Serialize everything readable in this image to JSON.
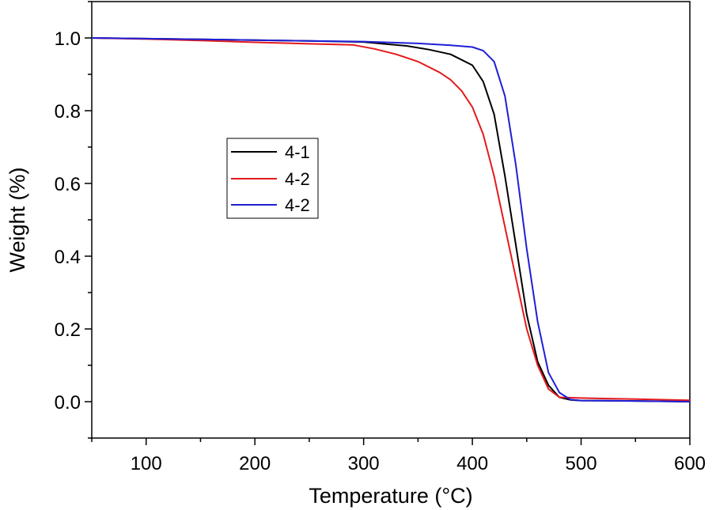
{
  "chart_data": {
    "type": "line",
    "title": "",
    "xlabel": "Temperature (°C)",
    "ylabel": "Weight (%)",
    "xlim": [
      50,
      600
    ],
    "ylim": [
      -0.1,
      1.1
    ],
    "x_ticks": [
      "100",
      "200",
      "300",
      "400",
      "500",
      "600"
    ],
    "y_ticks": [
      "0.0",
      "0.2",
      "0.4",
      "0.6",
      "0.8",
      "1.0"
    ],
    "grid": false,
    "legend_position": "center-left",
    "series": [
      {
        "name": "4-1",
        "color": "#000000",
        "points": [
          [
            50,
            1.0
          ],
          [
            100,
            0.998
          ],
          [
            150,
            0.996
          ],
          [
            200,
            0.994
          ],
          [
            250,
            0.992
          ],
          [
            300,
            0.989
          ],
          [
            340,
            0.978
          ],
          [
            360,
            0.968
          ],
          [
            380,
            0.955
          ],
          [
            400,
            0.925
          ],
          [
            410,
            0.88
          ],
          [
            420,
            0.79
          ],
          [
            430,
            0.62
          ],
          [
            440,
            0.43
          ],
          [
            450,
            0.24
          ],
          [
            460,
            0.11
          ],
          [
            470,
            0.045
          ],
          [
            480,
            0.012
          ],
          [
            490,
            0.005
          ],
          [
            500,
            0.003
          ],
          [
            550,
            0.002
          ],
          [
            600,
            0.0
          ]
        ]
      },
      {
        "name": "4-2",
        "color": "#e41a1c",
        "points": [
          [
            50,
            1.0
          ],
          [
            100,
            0.997
          ],
          [
            150,
            0.993
          ],
          [
            200,
            0.988
          ],
          [
            250,
            0.984
          ],
          [
            290,
            0.981
          ],
          [
            310,
            0.97
          ],
          [
            330,
            0.955
          ],
          [
            350,
            0.935
          ],
          [
            370,
            0.905
          ],
          [
            380,
            0.885
          ],
          [
            390,
            0.855
          ],
          [
            400,
            0.81
          ],
          [
            410,
            0.735
          ],
          [
            420,
            0.62
          ],
          [
            430,
            0.48
          ],
          [
            440,
            0.34
          ],
          [
            450,
            0.2
          ],
          [
            460,
            0.1
          ],
          [
            470,
            0.035
          ],
          [
            480,
            0.012
          ],
          [
            500,
            0.01
          ],
          [
            550,
            0.007
          ],
          [
            600,
            0.004
          ]
        ]
      },
      {
        "name": "4-2",
        "color": "#1f1fd6",
        "points": [
          [
            50,
            1.0
          ],
          [
            100,
            0.998
          ],
          [
            150,
            0.996
          ],
          [
            200,
            0.994
          ],
          [
            250,
            0.992
          ],
          [
            300,
            0.99
          ],
          [
            350,
            0.985
          ],
          [
            380,
            0.98
          ],
          [
            400,
            0.975
          ],
          [
            410,
            0.965
          ],
          [
            420,
            0.935
          ],
          [
            430,
            0.84
          ],
          [
            440,
            0.65
          ],
          [
            450,
            0.42
          ],
          [
            460,
            0.22
          ],
          [
            470,
            0.08
          ],
          [
            480,
            0.025
          ],
          [
            490,
            0.006
          ],
          [
            500,
            0.003
          ],
          [
            550,
            0.002
          ],
          [
            600,
            0.0
          ]
        ]
      }
    ]
  }
}
